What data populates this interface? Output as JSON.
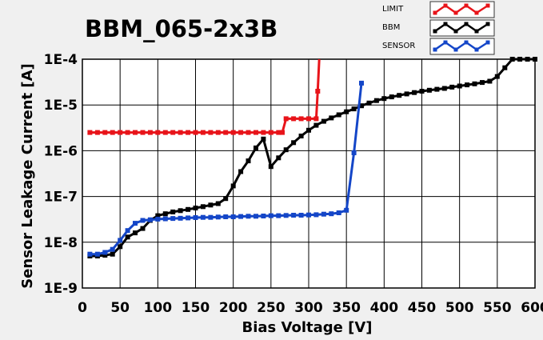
{
  "chart_data": {
    "type": "line",
    "title": "BBM_065-2x3B",
    "xlabel": "Bias Voltage [V]",
    "ylabel": "Sensor Leakage Current [A]",
    "xlim": [
      0,
      600
    ],
    "ylim": [
      1e-09,
      0.0001
    ],
    "y_scale": "log",
    "grid": true,
    "legend_position": "top-right",
    "x_ticks": [
      "0",
      "50",
      "100",
      "150",
      "200",
      "250",
      "300",
      "350",
      "400",
      "450",
      "500",
      "550",
      "600"
    ],
    "y_ticks": [
      "1E-9",
      "1E-8",
      "1E-7",
      "1E-6",
      "1E-5",
      "1E-4"
    ],
    "series": [
      {
        "name": "LIMIT",
        "color": "#e8141a",
        "x": [
          10,
          20,
          30,
          40,
          50,
          60,
          70,
          80,
          90,
          100,
          110,
          120,
          130,
          140,
          150,
          160,
          170,
          180,
          190,
          200,
          210,
          220,
          230,
          240,
          250,
          260,
          265,
          270,
          280,
          290,
          300,
          310,
          312,
          314
        ],
        "values": [
          2.5e-06,
          2.5e-06,
          2.5e-06,
          2.5e-06,
          2.5e-06,
          2.5e-06,
          2.5e-06,
          2.5e-06,
          2.5e-06,
          2.5e-06,
          2.5e-06,
          2.5e-06,
          2.5e-06,
          2.5e-06,
          2.5e-06,
          2.5e-06,
          2.5e-06,
          2.5e-06,
          2.5e-06,
          2.5e-06,
          2.5e-06,
          2.5e-06,
          2.5e-06,
          2.5e-06,
          2.5e-06,
          2.5e-06,
          2.5e-06,
          5e-06,
          5e-06,
          5e-06,
          5e-06,
          5e-06,
          2e-05,
          0.0001
        ]
      },
      {
        "name": "BBM",
        "color": "#000000",
        "x": [
          10,
          20,
          30,
          40,
          50,
          60,
          70,
          80,
          90,
          100,
          110,
          120,
          130,
          140,
          150,
          160,
          170,
          180,
          190,
          200,
          210,
          220,
          230,
          240,
          250,
          260,
          270,
          280,
          290,
          300,
          310,
          320,
          330,
          340,
          350,
          360,
          370,
          380,
          390,
          400,
          410,
          420,
          430,
          440,
          450,
          460,
          470,
          480,
          490,
          500,
          510,
          520,
          530,
          540,
          550,
          560,
          570,
          580,
          590,
          600
        ],
        "values": [
          5e-09,
          5e-09,
          5.2e-09,
          5.5e-09,
          8e-09,
          1.3e-08,
          1.6e-08,
          2e-08,
          3e-08,
          3.8e-08,
          4.2e-08,
          4.6e-08,
          4.9e-08,
          5.2e-08,
          5.6e-08,
          6e-08,
          6.5e-08,
          7e-08,
          9e-08,
          1.7e-07,
          3.5e-07,
          6e-07,
          1.15e-06,
          1.8e-06,
          4.5e-07,
          7e-07,
          1.05e-06,
          1.5e-06,
          2.1e-06,
          2.8e-06,
          3.6e-06,
          4.4e-06,
          5.2e-06,
          6.1e-06,
          7.1e-06,
          8.2e-06,
          9.6e-06,
          1.1e-05,
          1.25e-05,
          1.38e-05,
          1.5e-05,
          1.62e-05,
          1.74e-05,
          1.87e-05,
          2e-05,
          2.1e-05,
          2.2e-05,
          2.3e-05,
          2.45e-05,
          2.6e-05,
          2.75e-05,
          2.9e-05,
          3.1e-05,
          3.3e-05,
          4.2e-05,
          6.5e-05,
          0.0001,
          0.0001,
          0.0001,
          0.0001
        ]
      },
      {
        "name": "SENSOR",
        "color": "#1446c8",
        "x": [
          10,
          20,
          30,
          40,
          50,
          60,
          70,
          80,
          90,
          100,
          110,
          120,
          130,
          140,
          150,
          160,
          170,
          180,
          190,
          200,
          210,
          220,
          230,
          240,
          250,
          260,
          270,
          280,
          290,
          300,
          310,
          320,
          330,
          340,
          350,
          360,
          370
        ],
        "values": [
          5.5e-09,
          5.5e-09,
          6e-09,
          7e-09,
          1.1e-08,
          1.8e-08,
          2.6e-08,
          3e-08,
          3.1e-08,
          3.2e-08,
          3.25e-08,
          3.3e-08,
          3.35e-08,
          3.4e-08,
          3.45e-08,
          3.5e-08,
          3.5e-08,
          3.55e-08,
          3.6e-08,
          3.6e-08,
          3.65e-08,
          3.7e-08,
          3.7e-08,
          3.75e-08,
          3.8e-08,
          3.8e-08,
          3.85e-08,
          3.9e-08,
          3.9e-08,
          3.95e-08,
          4e-08,
          4.1e-08,
          4.2e-08,
          4.4e-08,
          5e-08,
          9e-07,
          3e-05
        ]
      }
    ]
  }
}
